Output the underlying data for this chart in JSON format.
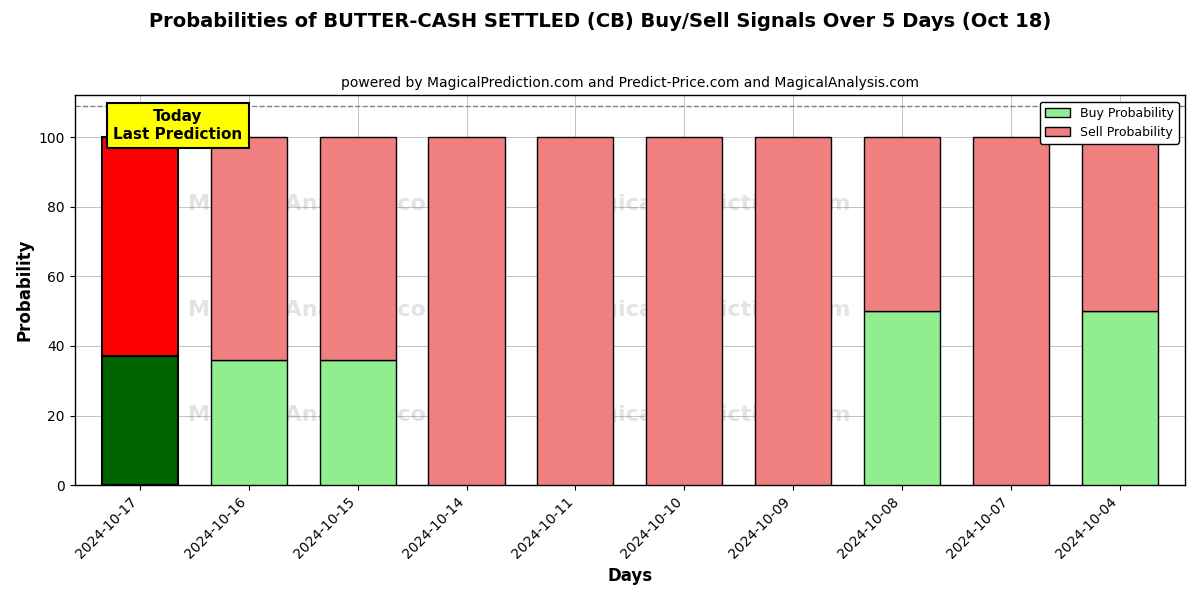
{
  "title": "Probabilities of BUTTER-CASH SETTLED (CB) Buy/Sell Signals Over 5 Days (Oct 18)",
  "subtitle": "powered by MagicalPrediction.com and Predict-Price.com and MagicalAnalysis.com",
  "xlabel": "Days",
  "ylabel": "Probability",
  "categories": [
    "2024-10-17",
    "2024-10-16",
    "2024-10-15",
    "2024-10-14",
    "2024-10-11",
    "2024-10-10",
    "2024-10-09",
    "2024-10-08",
    "2024-10-07",
    "2024-10-04"
  ],
  "buy_values": [
    37,
    36,
    36,
    0,
    0,
    0,
    0,
    50,
    0,
    50
  ],
  "sell_values": [
    63,
    64,
    64,
    100,
    100,
    100,
    100,
    50,
    100,
    50
  ],
  "today_index": 0,
  "buy_color_today": "#006400",
  "sell_color_today": "#ff0000",
  "buy_color_other": "#90EE90",
  "sell_color_other": "#F08080",
  "bar_edgecolor": "#000000",
  "ylim_max": 112,
  "yticks": [
    0,
    20,
    40,
    60,
    80,
    100
  ],
  "dashed_line_y": 109,
  "legend_buy_label": "Buy Probability",
  "legend_sell_label": "Sell Probability",
  "today_label": "Today\nLast Prediction",
  "figsize": [
    12.0,
    6.0
  ],
  "dpi": 100,
  "background_color": "#ffffff",
  "grid_color": "#aaaaaa",
  "title_fontsize": 14,
  "subtitle_fontsize": 10,
  "axis_label_fontsize": 12,
  "tick_fontsize": 10,
  "bar_width": 0.7
}
